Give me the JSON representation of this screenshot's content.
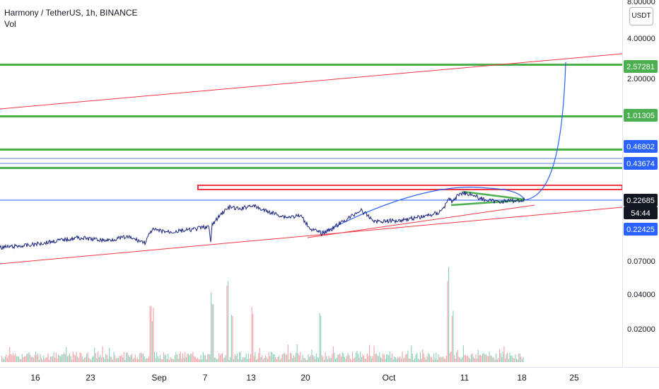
{
  "legend": {
    "symbol_line": "Harmony / TetherUS, 1h, BINANCE",
    "indicator": "Vol"
  },
  "price_axis": {
    "unit": "USDT",
    "ticks": [
      "8.00000",
      "4.00000",
      "2.00000",
      "0.07000",
      "0.04000",
      "0.02000"
    ],
    "top_value": "8.00000"
  },
  "tags": [
    {
      "id": "tag-2-57281",
      "label": "2.57281",
      "bg": "#4caf50",
      "fg": "#ffffff"
    },
    {
      "id": "tag-1-01305",
      "label": "1.01305",
      "bg": "#4caf50",
      "fg": "#ffffff"
    },
    {
      "id": "tag-0-46802",
      "label": "0.46802",
      "bg": "#2962ff",
      "fg": "#ffffff"
    },
    {
      "id": "tag-0-43674",
      "label": "0.43674",
      "bg": "#2962ff",
      "fg": "#ffffff"
    },
    {
      "id": "tag-current-price",
      "label": "0.22685",
      "bg": "#131722",
      "fg": "#ffffff"
    },
    {
      "id": "tag-countdown",
      "label": "54:44",
      "bg": "#131722",
      "fg": "#ffffff"
    },
    {
      "id": "tag-0-22425",
      "label": "0.22425",
      "bg": "#2962ff",
      "fg": "#ffffff"
    }
  ],
  "time_axis": {
    "labels": [
      "16",
      "23",
      "Sep",
      "7",
      "13",
      "20",
      "Oct",
      "11",
      "18",
      "25"
    ]
  },
  "colors": {
    "price_line": "#1a237e",
    "support_line": "#f23645",
    "target_line": "#4caf50",
    "blue_level": "#5b7fcf",
    "projection": "#2962ff",
    "vol_up": "#8ad0b8",
    "vol_down": "#f2a3a8"
  },
  "chart_data": {
    "type": "line",
    "title": "Harmony / TetherUS, 1h, BINANCE",
    "xlabel": "",
    "ylabel": "USDT",
    "x_tick_labels": [
      "16",
      "23",
      "Sep",
      "7",
      "13",
      "20",
      "Oct",
      "11",
      "18",
      "25"
    ],
    "y_tick_labels": [
      "8.00000",
      "4.00000",
      "2.00000",
      "0.07000",
      "0.04000",
      "0.02000"
    ],
    "price_series": {
      "name": "",
      "x": [
        "16",
        "23",
        "Sep",
        "7",
        "13",
        "20",
        "Oct",
        "11",
        "18"
      ],
      "y": [
        0.085,
        0.095,
        0.108,
        0.13,
        0.17,
        0.095,
        0.13,
        0.26,
        0.22685
      ]
    },
    "horizontal_levels": [
      2.57281,
      1.01305,
      0.46802,
      0.43674,
      0.22685,
      0.22425
    ],
    "last_price": 0.22685,
    "volume_axis_ticks": [
      "0.07000",
      "0.04000",
      "0.02000"
    ],
    "grid": false,
    "legend": "top-left"
  }
}
